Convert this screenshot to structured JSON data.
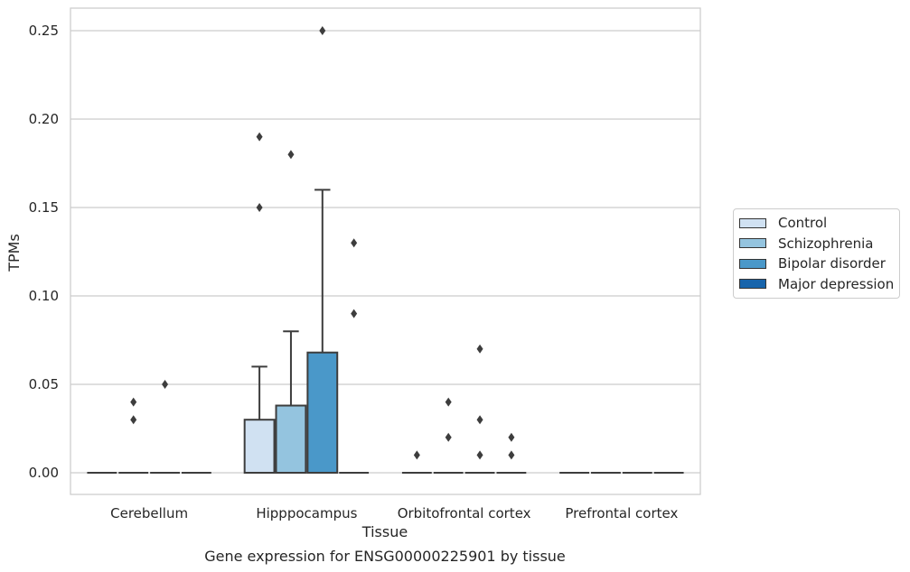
{
  "chart_data": {
    "type": "box",
    "title": "Gene expression for ENSG00000225901 by tissue",
    "xlabel": "Tissue",
    "ylabel": "TPMs",
    "ylim": [
      -0.012,
      0.263
    ],
    "yticks": [
      "0.00",
      "0.05",
      "0.10",
      "0.15",
      "0.20",
      "0.25"
    ],
    "ytick_values": [
      0,
      0.05,
      0.1,
      0.15,
      0.2,
      0.25
    ],
    "grid": true,
    "legend_position": "right",
    "categories": [
      "Cerebellum",
      "Hipppocampus",
      "Orbitofrontal cortex",
      "Prefrontal cortex"
    ],
    "series": [
      {
        "name": "Control",
        "color": "#d0e1f2",
        "boxes": [
          {
            "q1": 0,
            "median": 0,
            "q3": 0,
            "whisker_low": 0,
            "whisker_high": 0,
            "outliers": []
          },
          {
            "q1": 0,
            "median": 0,
            "q3": 0.03,
            "whisker_low": 0,
            "whisker_high": 0.06,
            "outliers": [
              0.15,
              0.19
            ]
          },
          {
            "q1": 0,
            "median": 0,
            "q3": 0,
            "whisker_low": 0,
            "whisker_high": 0,
            "outliers": [
              0.01
            ]
          },
          {
            "q1": 0,
            "median": 0,
            "q3": 0,
            "whisker_low": 0,
            "whisker_high": 0,
            "outliers": []
          }
        ]
      },
      {
        "name": "Schizophrenia",
        "color": "#94c4df",
        "boxes": [
          {
            "q1": 0,
            "median": 0,
            "q3": 0,
            "whisker_low": 0,
            "whisker_high": 0,
            "outliers": [
              0.03,
              0.04
            ]
          },
          {
            "q1": 0,
            "median": 0,
            "q3": 0.038,
            "whisker_low": 0,
            "whisker_high": 0.08,
            "outliers": [
              0.18
            ]
          },
          {
            "q1": 0,
            "median": 0,
            "q3": 0,
            "whisker_low": 0,
            "whisker_high": 0,
            "outliers": [
              0.02,
              0.04
            ]
          },
          {
            "q1": 0,
            "median": 0,
            "q3": 0,
            "whisker_low": 0,
            "whisker_high": 0,
            "outliers": []
          }
        ]
      },
      {
        "name": "Bipolar disorder",
        "color": "#4a98c9",
        "boxes": [
          {
            "q1": 0,
            "median": 0,
            "q3": 0,
            "whisker_low": 0,
            "whisker_high": 0,
            "outliers": [
              0.05
            ]
          },
          {
            "q1": 0,
            "median": 0,
            "q3": 0.068,
            "whisker_low": 0,
            "whisker_high": 0.16,
            "outliers": [
              0.25
            ]
          },
          {
            "q1": 0,
            "median": 0,
            "q3": 0,
            "whisker_low": 0,
            "whisker_high": 0,
            "outliers": [
              0.01,
              0.03,
              0.07
            ]
          },
          {
            "q1": 0,
            "median": 0,
            "q3": 0,
            "whisker_low": 0,
            "whisker_high": 0,
            "outliers": []
          }
        ]
      },
      {
        "name": "Major depression",
        "color": "#1764ab",
        "boxes": [
          {
            "q1": 0,
            "median": 0,
            "q3": 0,
            "whisker_low": 0,
            "whisker_high": 0,
            "outliers": []
          },
          {
            "q1": 0,
            "median": 0,
            "q3": 0,
            "whisker_low": 0,
            "whisker_high": 0,
            "outliers": [
              0.09,
              0.13
            ]
          },
          {
            "q1": 0,
            "median": 0,
            "q3": 0,
            "whisker_low": 0,
            "whisker_high": 0,
            "outliers": [
              0.01,
              0.02
            ]
          },
          {
            "q1": 0,
            "median": 0,
            "q3": 0,
            "whisker_low": 0,
            "whisker_high": 0,
            "outliers": []
          }
        ]
      }
    ]
  }
}
